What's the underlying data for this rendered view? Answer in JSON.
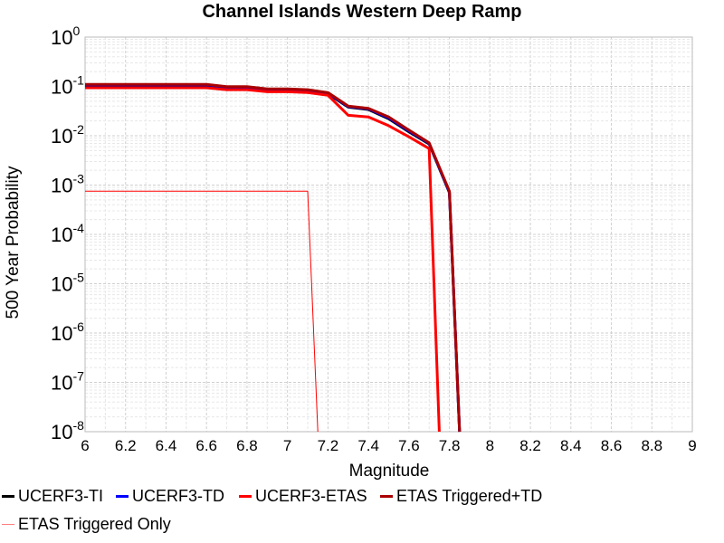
{
  "chart_data": {
    "type": "line",
    "title": "Channel Islands Western Deep Ramp",
    "xlabel": "Magnitude",
    "ylabel": "500 Year Probability",
    "xlim": [
      6,
      9
    ],
    "ylim": [
      1e-08,
      1
    ],
    "yscale": "log",
    "grid": true,
    "x_ticks": [
      "6",
      "6.2",
      "6.4",
      "6.6",
      "6.8",
      "7",
      "7.2",
      "7.4",
      "7.6",
      "7.8",
      "8",
      "8.2",
      "8.4",
      "8.6",
      "8.8",
      "9"
    ],
    "y_ticks": [
      {
        "base": "10",
        "exp": "0"
      },
      {
        "base": "10",
        "exp": "-1"
      },
      {
        "base": "10",
        "exp": "-2"
      },
      {
        "base": "10",
        "exp": "-3"
      },
      {
        "base": "10",
        "exp": "-4"
      },
      {
        "base": "10",
        "exp": "-5"
      },
      {
        "base": "10",
        "exp": "-6"
      },
      {
        "base": "10",
        "exp": "-7"
      },
      {
        "base": "10",
        "exp": "-8"
      }
    ],
    "legend_position": "bottom",
    "series": [
      {
        "name": "UCERF3-TI",
        "color": "#000000",
        "width": 3,
        "x": [
          6.0,
          6.1,
          6.2,
          6.3,
          6.4,
          6.5,
          6.6,
          6.7,
          6.8,
          6.9,
          7.0,
          7.1,
          7.2,
          7.3,
          7.4,
          7.5,
          7.6,
          7.7,
          7.8,
          7.85
        ],
        "y": [
          0.103,
          0.103,
          0.103,
          0.103,
          0.103,
          0.103,
          0.103,
          0.093,
          0.093,
          0.084,
          0.084,
          0.081,
          0.071,
          0.038,
          0.034,
          0.022,
          0.012,
          0.0068,
          0.0007,
          1e-08
        ]
      },
      {
        "name": "UCERF3-TD",
        "color": "#0000ff",
        "width": 3,
        "x": [
          6.0,
          6.1,
          6.2,
          6.3,
          6.4,
          6.5,
          6.6,
          6.7,
          6.8,
          6.9,
          7.0,
          7.1,
          7.2,
          7.3,
          7.4,
          7.5,
          7.6,
          7.7,
          7.8,
          7.85
        ],
        "y": [
          0.108,
          0.108,
          0.108,
          0.108,
          0.108,
          0.108,
          0.108,
          0.097,
          0.097,
          0.087,
          0.087,
          0.084,
          0.073,
          0.039,
          0.035,
          0.023,
          0.0125,
          0.007,
          0.00072,
          1e-08
        ]
      },
      {
        "name": "UCERF3-ETAS",
        "color": "#ff0000",
        "width": 3,
        "x": [
          6.0,
          6.1,
          6.2,
          6.3,
          6.4,
          6.5,
          6.6,
          6.7,
          6.8,
          6.9,
          7.0,
          7.1,
          7.2,
          7.3,
          7.4,
          7.5,
          7.6,
          7.7,
          7.75
        ],
        "y": [
          0.094,
          0.094,
          0.094,
          0.094,
          0.094,
          0.094,
          0.094,
          0.086,
          0.086,
          0.078,
          0.078,
          0.075,
          0.066,
          0.026,
          0.024,
          0.016,
          0.0095,
          0.0055,
          1e-08
        ]
      },
      {
        "name": "ETAS Triggered+TD",
        "color": "#aa0000",
        "width": 3,
        "x": [
          6.0,
          6.1,
          6.2,
          6.3,
          6.4,
          6.5,
          6.6,
          6.7,
          6.8,
          6.9,
          7.0,
          7.1,
          7.2,
          7.3,
          7.4,
          7.5,
          7.6,
          7.7,
          7.8,
          7.85
        ],
        "y": [
          0.11,
          0.11,
          0.11,
          0.11,
          0.11,
          0.11,
          0.11,
          0.099,
          0.099,
          0.089,
          0.089,
          0.086,
          0.075,
          0.04,
          0.036,
          0.024,
          0.013,
          0.0072,
          0.00075,
          1e-08
        ]
      },
      {
        "name": "ETAS Triggered Only",
        "color": "#ff0000",
        "width": 1,
        "x": [
          6.0,
          6.1,
          6.2,
          6.3,
          6.4,
          6.5,
          6.6,
          6.7,
          6.8,
          6.9,
          7.0,
          7.1,
          7.15
        ],
        "y": [
          0.00075,
          0.00075,
          0.00075,
          0.00075,
          0.00075,
          0.00075,
          0.00075,
          0.00075,
          0.00075,
          0.00075,
          0.00075,
          0.00075,
          1e-08
        ]
      }
    ]
  }
}
